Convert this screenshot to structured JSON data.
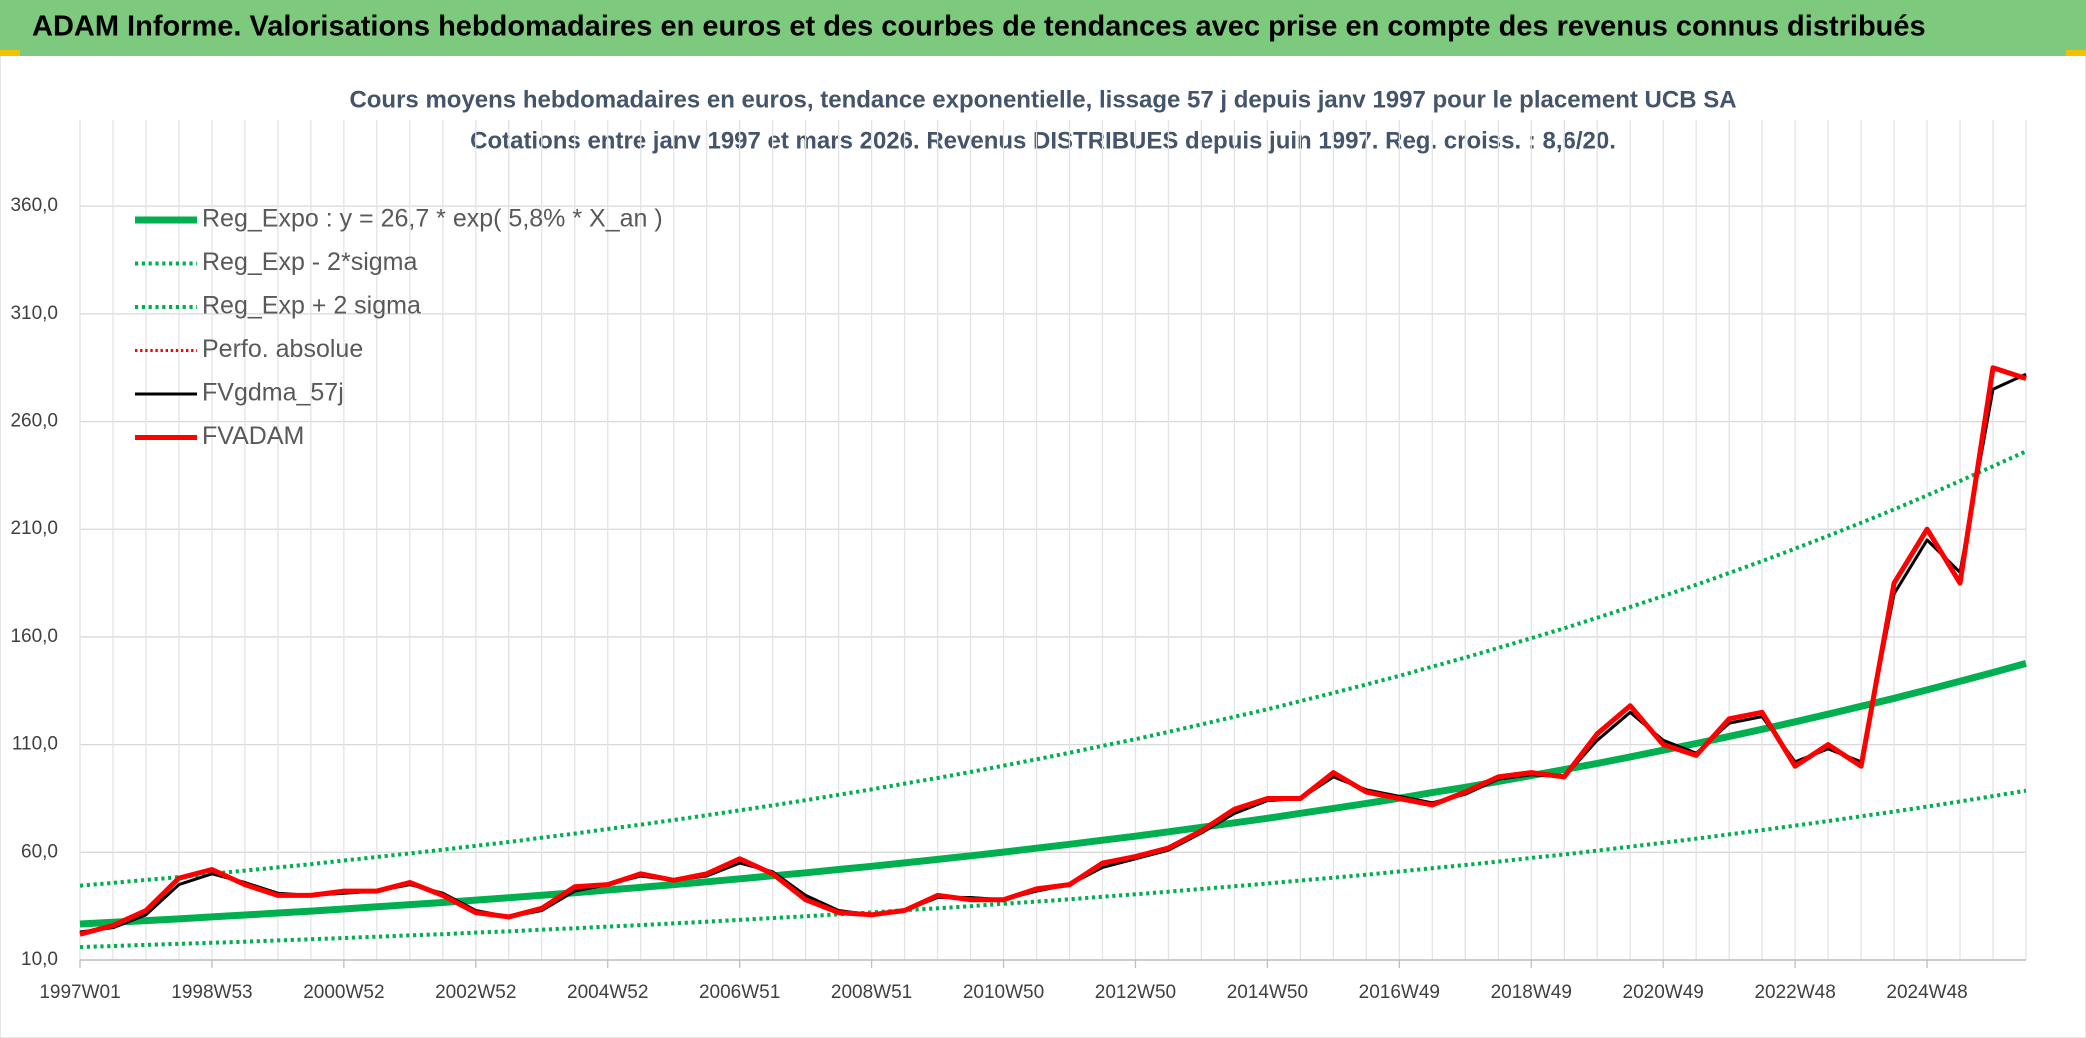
{
  "chart_data": {
    "type": "line",
    "header": "ADAM Informe. Valorisations hebdomadaires en euros et des courbes de tendances avec prise en compte des revenus connus distribués",
    "title": "Cours moyens hebdomadaires en euros, tendance exponentielle, lissage 57 j depuis janv 1997 pour le placement UCB SA",
    "subtitle": "Cotations entre janv 1997 et mars 2026. Revenus DISTRIBUES depuis juin 1997. Reg. croiss. : 8,6/20.",
    "categories": [
      "1997W01",
      null,
      null,
      null,
      "1998W53",
      null,
      null,
      null,
      "2000W52",
      null,
      null,
      null,
      "2002W52",
      null,
      null,
      null,
      "2004W52",
      null,
      null,
      null,
      "2006W51",
      null,
      null,
      null,
      "2008W51",
      null,
      null,
      null,
      "2010W50",
      null,
      null,
      null,
      "2012W50",
      null,
      null,
      null,
      "2014W50",
      null,
      null,
      null,
      "2016W49",
      null,
      null,
      null,
      "2018W49",
      null,
      null,
      null,
      "2020W49",
      null,
      null,
      null,
      "2022W48",
      null,
      null,
      null,
      "2024W48",
      null,
      null,
      null
    ],
    "ylim": [
      10,
      400
    ],
    "yticks": [
      {
        "value": 10,
        "label": "10,0"
      },
      {
        "value": 60,
        "label": "60,0"
      },
      {
        "value": 110,
        "label": "110,0"
      },
      {
        "value": 160,
        "label": "160,0"
      },
      {
        "value": 210,
        "label": "210,0"
      },
      {
        "value": 260,
        "label": "260,0"
      },
      {
        "value": 310,
        "label": "310,0"
      },
      {
        "value": 360,
        "label": "360,0"
      }
    ],
    "grid": true,
    "legend": "top-left",
    "series": [
      {
        "name": "Reg_Expo : y = 26,7 * exp( 5,8% *  X_an )",
        "color": "#00b050",
        "style": "solid",
        "width": 7,
        "values": [
          26.7,
          27.5,
          28.3,
          29.1,
          30.0,
          30.9,
          31.8,
          32.7,
          33.7,
          34.7,
          35.7,
          36.7,
          37.8,
          38.9,
          40.1,
          41.2,
          42.5,
          43.7,
          45.0,
          46.3,
          47.7,
          49.1,
          50.5,
          52.0,
          53.5,
          55.1,
          56.7,
          58.4,
          60.1,
          61.9,
          63.7,
          65.6,
          67.5,
          69.5,
          71.6,
          73.7,
          75.8,
          78.1,
          80.4,
          82.7,
          85.1,
          87.7,
          90.2,
          92.9,
          95.6,
          98.4,
          101.3,
          104.3,
          107.4,
          110.5,
          113.8,
          117.1,
          120.6,
          124.1,
          127.8,
          131.5,
          135.4,
          139.4,
          143.5,
          147.7
        ]
      },
      {
        "name": "Reg_Exp - 2*sigma",
        "color": "#00b050",
        "style": "dotted",
        "width": 4,
        "values": [
          16.0,
          16.5,
          17.0,
          17.5,
          18.0,
          18.5,
          19.1,
          19.6,
          20.2,
          20.8,
          21.4,
          22.0,
          22.7,
          23.3,
          24.1,
          24.7,
          25.5,
          26.2,
          27.0,
          27.8,
          28.6,
          29.5,
          30.3,
          31.2,
          32.1,
          33.1,
          34.0,
          35.0,
          36.1,
          37.1,
          38.2,
          39.4,
          40.5,
          41.7,
          43.0,
          44.2,
          45.5,
          46.9,
          48.2,
          49.6,
          51.1,
          52.6,
          54.1,
          55.7,
          57.4,
          59.0,
          60.8,
          62.6,
          64.4,
          66.3,
          68.3,
          70.3,
          72.4,
          74.5,
          76.7,
          78.9,
          81.2,
          83.6,
          86.1,
          88.6
        ]
      },
      {
        "name": "Reg_Exp + 2 sigma",
        "color": "#00b050",
        "style": "dotted",
        "width": 4,
        "values": [
          44.5,
          45.8,
          47.2,
          48.5,
          50.0,
          51.5,
          53.0,
          54.5,
          56.2,
          57.8,
          59.5,
          61.2,
          63.0,
          64.8,
          66.8,
          68.7,
          70.8,
          72.8,
          75.0,
          77.2,
          79.5,
          81.8,
          84.2,
          86.7,
          89.2,
          91.9,
          94.5,
          97.3,
          100.2,
          103.2,
          106.2,
          109.4,
          112.5,
          115.9,
          119.4,
          122.9,
          126.4,
          130.2,
          134.0,
          137.9,
          141.9,
          146.2,
          150.4,
          154.9,
          159.4,
          164.0,
          168.9,
          173.9,
          179.0,
          184.2,
          189.7,
          195.2,
          201.0,
          206.9,
          213.0,
          219.2,
          225.7,
          232.4,
          239.2,
          246.2
        ]
      },
      {
        "name": "Perfo. absolue",
        "color": "#ff0000",
        "style": "dotted",
        "width": 3,
        "values": [
          22,
          26,
          33,
          48,
          52,
          45,
          40,
          40,
          42,
          42,
          46,
          40,
          32,
          30,
          34,
          44,
          45,
          50,
          47,
          50,
          57,
          50,
          38,
          32,
          31,
          33,
          40,
          38,
          38,
          43,
          45,
          55,
          58,
          62,
          70,
          80,
          85,
          85,
          97,
          88,
          85,
          82,
          88,
          95,
          97,
          95,
          115,
          128,
          110,
          105,
          122,
          125,
          100,
          110,
          100,
          185,
          210,
          185,
          285,
          280
        ]
      },
      {
        "name": "FVgdma_57j",
        "color": "#000000",
        "style": "solid",
        "width": 3,
        "values": [
          23,
          25,
          31,
          45,
          50,
          46,
          41,
          40,
          41,
          42,
          45,
          41,
          33,
          30,
          33,
          42,
          45,
          49,
          47,
          49,
          55,
          51,
          40,
          33,
          31,
          33,
          39,
          39,
          38,
          42,
          45,
          53,
          57,
          61,
          69,
          78,
          84,
          85,
          95,
          89,
          86,
          83,
          87,
          94,
          96,
          95,
          112,
          125,
          112,
          106,
          120,
          123,
          102,
          108,
          102,
          180,
          205,
          190,
          275,
          282
        ]
      },
      {
        "name": "FVADAM",
        "color": "#ff0000",
        "style": "solid",
        "width": 5,
        "values": [
          22,
          26,
          33,
          48,
          52,
          45,
          40,
          40,
          42,
          42,
          46,
          40,
          32,
          30,
          34,
          44,
          45,
          50,
          47,
          50,
          57,
          50,
          38,
          32,
          31,
          33,
          40,
          38,
          38,
          43,
          45,
          55,
          58,
          62,
          70,
          80,
          85,
          85,
          97,
          88,
          85,
          82,
          88,
          95,
          97,
          95,
          115,
          128,
          110,
          105,
          122,
          125,
          100,
          110,
          100,
          185,
          210,
          185,
          285,
          280
        ]
      }
    ]
  }
}
